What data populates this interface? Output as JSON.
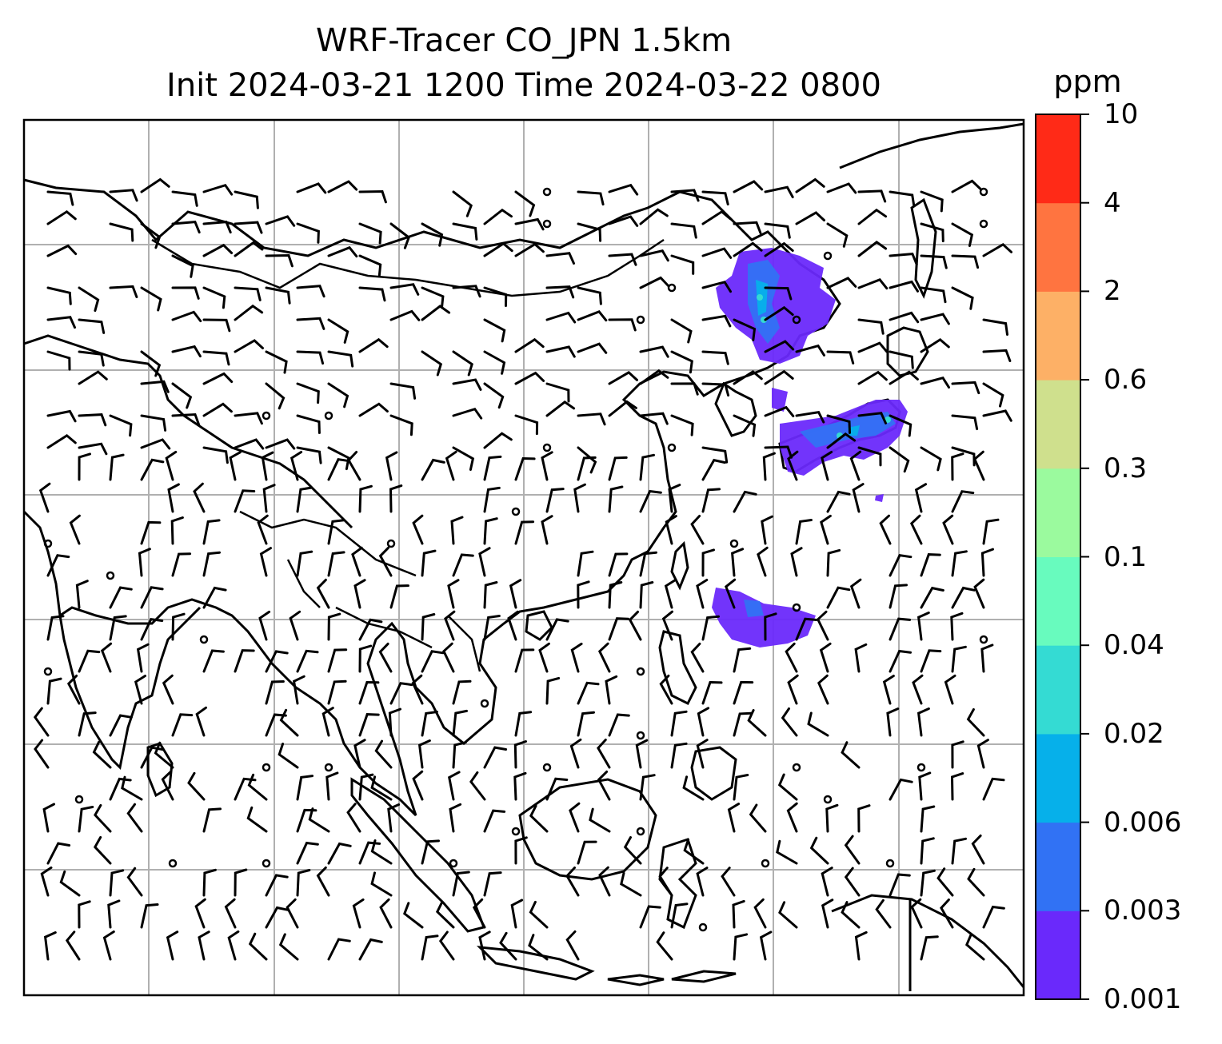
{
  "title": {
    "line1": "WRF-Tracer CO_JPN 1.5km",
    "line2": "Init 2024-03-21 1200 Time 2024-03-22 0800"
  },
  "colorbar": {
    "unit": "ppm",
    "levels": [
      "0.001",
      "0.003",
      "0.006",
      "0.02",
      "0.04",
      "0.1",
      "0.3",
      "0.6",
      "2",
      "4",
      "10"
    ],
    "colors": [
      "#6a29fb",
      "#3172f4",
      "#06b0ea",
      "#34dbd3",
      "#68fbbe",
      "#9bfa9e",
      "#cfe08d",
      "#fdb066",
      "#ff7440",
      "#ff2a17"
    ]
  },
  "map": {
    "gridlines": true,
    "tracer_plumes": [
      {
        "region": "northeast-china",
        "dominant_range": "0.001-0.006"
      },
      {
        "region": "korea-japan",
        "dominant_range": "0.001-0.006"
      },
      {
        "region": "philippine-sea",
        "dominant_range": "0.001-0.003"
      }
    ],
    "wind_barbs": "shown",
    "calm_markers": "shown"
  }
}
